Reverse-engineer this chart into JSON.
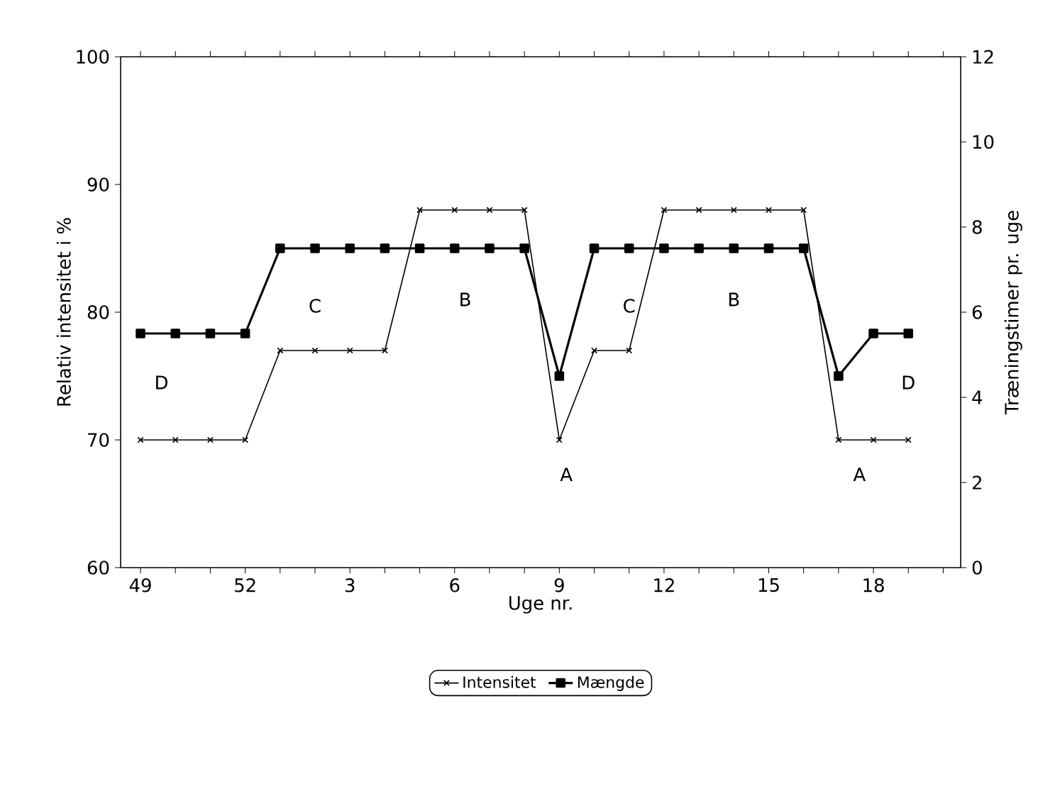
{
  "chart_data": {
    "type": "line",
    "xlabel": "Uge nr.",
    "ylabel": "Relativ intensitet i %",
    "y2label": "Træningstimer pr. uge",
    "categories": [
      "49",
      null,
      null,
      "52",
      null,
      null,
      "3",
      null,
      null,
      "6",
      null,
      null,
      "9",
      null,
      null,
      "12",
      null,
      null,
      "15",
      null,
      null,
      "18",
      null,
      null
    ],
    "series": [
      {
        "name": "Intensitet",
        "color": "#000000",
        "marker": "cross",
        "values": [
          70,
          70,
          70,
          70,
          77,
          77,
          77,
          77,
          88,
          88,
          88,
          88,
          70,
          77,
          77,
          88,
          88,
          88,
          88,
          88,
          70,
          70,
          70,
          null
        ]
      },
      {
        "name": "Mængde",
        "color": "#000000",
        "marker": "square",
        "axis": "y2",
        "values": [
          5.5,
          5.5,
          5.5,
          5.5,
          7.5,
          7.5,
          7.5,
          7.5,
          7.5,
          7.5,
          7.5,
          7.5,
          4.5,
          7.5,
          7.5,
          7.5,
          7.5,
          7.5,
          7.5,
          7.5,
          4.5,
          5.5,
          5.5,
          null
        ]
      }
    ],
    "ylim": [
      60,
      100
    ],
    "yticks": [
      60,
      70,
      80,
      90,
      100
    ],
    "y2lim": [
      0,
      12
    ],
    "y2ticks": [
      0,
      2,
      4,
      6,
      8,
      10,
      12
    ],
    "annotations": [
      "D",
      "C",
      "B",
      "A",
      "C",
      "B",
      "A",
      "D"
    ],
    "legend": "bottom",
    "grid": false
  }
}
